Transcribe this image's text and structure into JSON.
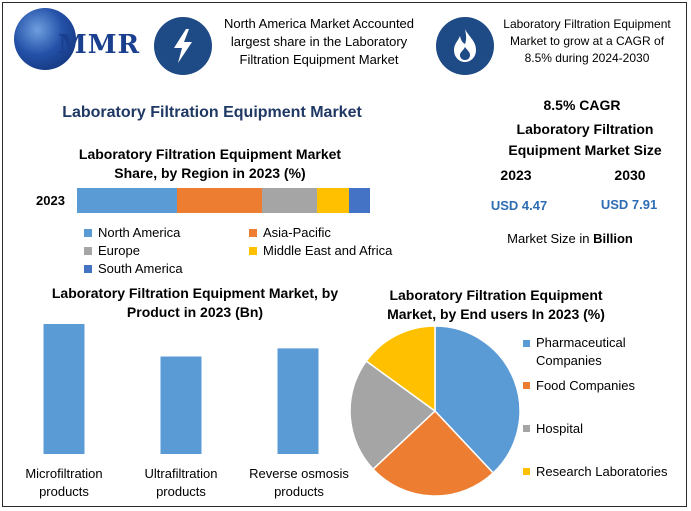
{
  "header": {
    "logo_text": "MMR",
    "headline_1": "North America Market Accounted largest share in the Laboratory Filtration Equipment Market",
    "headline_2": "Laboratory Filtration Equipment Market to grow at a CAGR of 8.5% during 2024-2030",
    "icon_1": "lightning-icon",
    "icon_2": "flame-icon"
  },
  "main_title": "Laboratory Filtration Equipment Market",
  "summary": {
    "cagr": "8.5% CAGR",
    "size_title": "Laboratory Filtration Equipment Market Size",
    "year_1": "2023",
    "year_2": "2030",
    "value_1": "USD 4.47",
    "value_2": "USD 7.91",
    "unit_prefix": "Market Size in ",
    "unit_bold": "Billion"
  },
  "colors": {
    "blue": "#5b9bd5",
    "orange": "#ed7d31",
    "gray": "#a5a5a5",
    "yellow": "#ffc000",
    "dark_blue": "#4472c4",
    "title_navy": "#1f3864",
    "accent": "#2e6db4"
  },
  "chart_data": [
    {
      "type": "bar",
      "orientation": "horizontal-stacked",
      "title": "Laboratory Filtration Equipment Market Share, by Region in 2023 (%)",
      "categories": [
        "2023"
      ],
      "series": [
        {
          "name": "North America",
          "values": [
            34
          ]
        },
        {
          "name": "Asia-Pacific",
          "values": [
            29
          ]
        },
        {
          "name": "Europe",
          "values": [
            19
          ]
        },
        {
          "name": "Middle East and Africa",
          "values": [
            11
          ]
        },
        {
          "name": "South America",
          "values": [
            7
          ]
        }
      ],
      "legend": "bottom",
      "grid": false
    },
    {
      "type": "bar",
      "title": "Laboratory Filtration Equipment Market, by Product in 2023 (Bn)",
      "categories": [
        "Microfiltration products",
        "Ultrafiltration products",
        "Reverse osmosis products"
      ],
      "values": [
        1.6,
        1.2,
        1.3
      ],
      "ylim": [
        0,
        1.6
      ],
      "grid": false
    },
    {
      "type": "pie",
      "title": "Laboratory Filtration Equipment Market, by End users In 2023 (%)",
      "labels": [
        "Pharmaceutical Companies",
        "Food Companies",
        "Hospital",
        "Research Laboratories"
      ],
      "values": [
        38,
        25,
        22,
        15
      ],
      "legend": "right"
    }
  ]
}
